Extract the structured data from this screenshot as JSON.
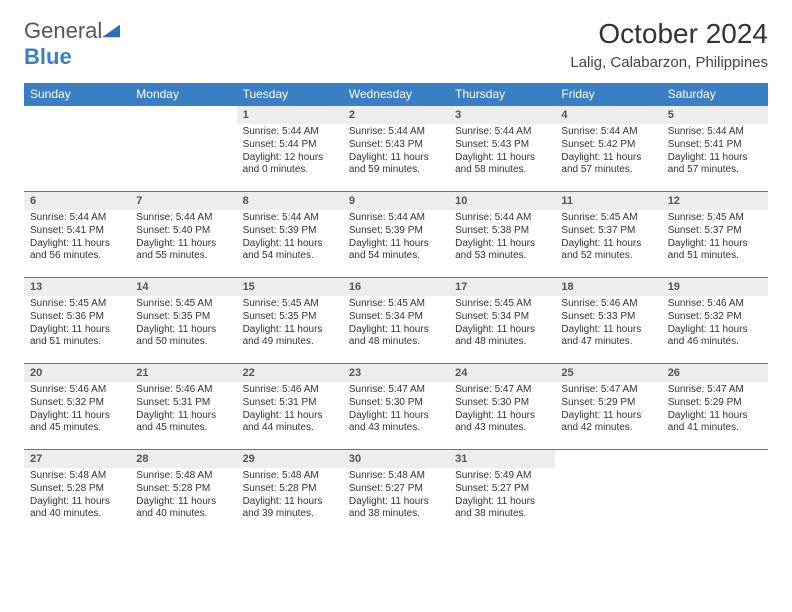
{
  "logo": {
    "part1": "General",
    "part2": "Blue"
  },
  "title": "October 2024",
  "location": "Lalig, Calabarzon, Philippines",
  "headers_bg": "#3a7fc4",
  "daynum_bg": "#eceded",
  "days_of_week": [
    "Sunday",
    "Monday",
    "Tuesday",
    "Wednesday",
    "Thursday",
    "Friday",
    "Saturday"
  ],
  "weeks": [
    [
      null,
      null,
      {
        "n": "1",
        "sr": "5:44 AM",
        "ss": "5:44 PM",
        "dl": "12 hours and 0 minutes."
      },
      {
        "n": "2",
        "sr": "5:44 AM",
        "ss": "5:43 PM",
        "dl": "11 hours and 59 minutes."
      },
      {
        "n": "3",
        "sr": "5:44 AM",
        "ss": "5:43 PM",
        "dl": "11 hours and 58 minutes."
      },
      {
        "n": "4",
        "sr": "5:44 AM",
        "ss": "5:42 PM",
        "dl": "11 hours and 57 minutes."
      },
      {
        "n": "5",
        "sr": "5:44 AM",
        "ss": "5:41 PM",
        "dl": "11 hours and 57 minutes."
      }
    ],
    [
      {
        "n": "6",
        "sr": "5:44 AM",
        "ss": "5:41 PM",
        "dl": "11 hours and 56 minutes."
      },
      {
        "n": "7",
        "sr": "5:44 AM",
        "ss": "5:40 PM",
        "dl": "11 hours and 55 minutes."
      },
      {
        "n": "8",
        "sr": "5:44 AM",
        "ss": "5:39 PM",
        "dl": "11 hours and 54 minutes."
      },
      {
        "n": "9",
        "sr": "5:44 AM",
        "ss": "5:39 PM",
        "dl": "11 hours and 54 minutes."
      },
      {
        "n": "10",
        "sr": "5:44 AM",
        "ss": "5:38 PM",
        "dl": "11 hours and 53 minutes."
      },
      {
        "n": "11",
        "sr": "5:45 AM",
        "ss": "5:37 PM",
        "dl": "11 hours and 52 minutes."
      },
      {
        "n": "12",
        "sr": "5:45 AM",
        "ss": "5:37 PM",
        "dl": "11 hours and 51 minutes."
      }
    ],
    [
      {
        "n": "13",
        "sr": "5:45 AM",
        "ss": "5:36 PM",
        "dl": "11 hours and 51 minutes."
      },
      {
        "n": "14",
        "sr": "5:45 AM",
        "ss": "5:35 PM",
        "dl": "11 hours and 50 minutes."
      },
      {
        "n": "15",
        "sr": "5:45 AM",
        "ss": "5:35 PM",
        "dl": "11 hours and 49 minutes."
      },
      {
        "n": "16",
        "sr": "5:45 AM",
        "ss": "5:34 PM",
        "dl": "11 hours and 48 minutes."
      },
      {
        "n": "17",
        "sr": "5:45 AM",
        "ss": "5:34 PM",
        "dl": "11 hours and 48 minutes."
      },
      {
        "n": "18",
        "sr": "5:46 AM",
        "ss": "5:33 PM",
        "dl": "11 hours and 47 minutes."
      },
      {
        "n": "19",
        "sr": "5:46 AM",
        "ss": "5:32 PM",
        "dl": "11 hours and 46 minutes."
      }
    ],
    [
      {
        "n": "20",
        "sr": "5:46 AM",
        "ss": "5:32 PM",
        "dl": "11 hours and 45 minutes."
      },
      {
        "n": "21",
        "sr": "5:46 AM",
        "ss": "5:31 PM",
        "dl": "11 hours and 45 minutes."
      },
      {
        "n": "22",
        "sr": "5:46 AM",
        "ss": "5:31 PM",
        "dl": "11 hours and 44 minutes."
      },
      {
        "n": "23",
        "sr": "5:47 AM",
        "ss": "5:30 PM",
        "dl": "11 hours and 43 minutes."
      },
      {
        "n": "24",
        "sr": "5:47 AM",
        "ss": "5:30 PM",
        "dl": "11 hours and 43 minutes."
      },
      {
        "n": "25",
        "sr": "5:47 AM",
        "ss": "5:29 PM",
        "dl": "11 hours and 42 minutes."
      },
      {
        "n": "26",
        "sr": "5:47 AM",
        "ss": "5:29 PM",
        "dl": "11 hours and 41 minutes."
      }
    ],
    [
      {
        "n": "27",
        "sr": "5:48 AM",
        "ss": "5:28 PM",
        "dl": "11 hours and 40 minutes."
      },
      {
        "n": "28",
        "sr": "5:48 AM",
        "ss": "5:28 PM",
        "dl": "11 hours and 40 minutes."
      },
      {
        "n": "29",
        "sr": "5:48 AM",
        "ss": "5:28 PM",
        "dl": "11 hours and 39 minutes."
      },
      {
        "n": "30",
        "sr": "5:48 AM",
        "ss": "5:27 PM",
        "dl": "11 hours and 38 minutes."
      },
      {
        "n": "31",
        "sr": "5:49 AM",
        "ss": "5:27 PM",
        "dl": "11 hours and 38 minutes."
      },
      null,
      null
    ]
  ],
  "labels": {
    "sunrise": "Sunrise:",
    "sunset": "Sunset:",
    "daylight": "Daylight:"
  }
}
